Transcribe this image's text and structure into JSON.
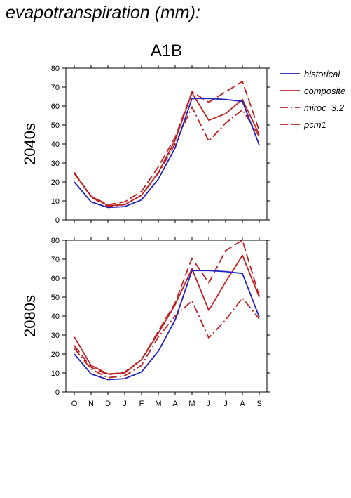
{
  "page_title": "evapotranspiration (mm):",
  "chart_data": {
    "type": "line",
    "scenario": "A1B",
    "categories": [
      "O",
      "N",
      "D",
      "J",
      "F",
      "M",
      "A",
      "M",
      "J",
      "J",
      "A",
      "S"
    ],
    "ylim": [
      0,
      80
    ],
    "yticks": [
      0,
      10,
      20,
      30,
      40,
      50,
      60,
      70,
      80
    ],
    "legend_position": "top-right",
    "legend": [
      {
        "name": "historical",
        "color": "#2222bb",
        "style": "solid"
      },
      {
        "name": "composite",
        "color": "#bb2222",
        "style": "solid"
      },
      {
        "name": "miroc_3.2",
        "color": "#bb2222",
        "style": "dashdot"
      },
      {
        "name": "pcm1",
        "color": "#bb2222",
        "style": "dashed"
      }
    ],
    "panels": [
      {
        "label": "2040s",
        "series": [
          {
            "name": "historical",
            "values": [
              20,
              9.5,
              6.5,
              7,
              10.5,
              21.5,
              38,
              64,
              64,
              63.5,
              62.5,
              39.5
            ]
          },
          {
            "name": "composite",
            "values": [
              24.5,
              12.5,
              7.5,
              8,
              13,
              25,
              42,
              67,
              52.5,
              56,
              63.5,
              45
            ]
          },
          {
            "name": "miroc_3.2",
            "values": [
              25,
              12,
              7,
              8,
              13,
              24.5,
              40,
              59.5,
              41.5,
              51,
              58,
              44
            ]
          },
          {
            "name": "pcm1",
            "values": [
              25,
              12.5,
              8,
              9.5,
              15,
              28,
              43.5,
              67.5,
              62,
              67.5,
              73,
              47
            ]
          }
        ]
      },
      {
        "label": "2080s",
        "series": [
          {
            "name": "historical",
            "values": [
              20,
              9.5,
              6.5,
              7,
              10.5,
              21.5,
              38,
              64,
              64,
              63.5,
              62.5,
              39.5
            ]
          },
          {
            "name": "composite",
            "values": [
              29,
              14,
              9.5,
              10,
              17,
              31,
              46,
              65,
              43,
              58,
              72,
              50
            ]
          },
          {
            "name": "miroc_3.2",
            "values": [
              23,
              12,
              7.5,
              8.5,
              14,
              29,
              40,
              48,
              28.5,
              38,
              49.5,
              38.5
            ]
          },
          {
            "name": "pcm1",
            "values": [
              24.5,
              13,
              9,
              10.5,
              17,
              32,
              47,
              70.5,
              57.5,
              74.5,
              80,
              50.5
            ]
          }
        ]
      }
    ]
  }
}
